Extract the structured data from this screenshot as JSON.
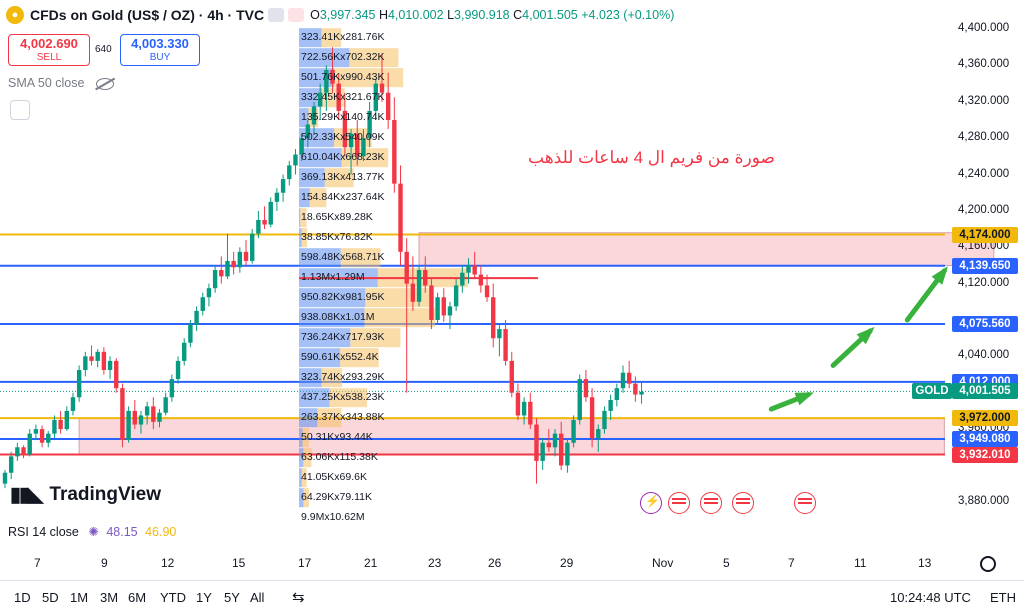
{
  "header": {
    "symbol": "CFDs on Gold (US$ / OZ) · 4h · TVC",
    "o_label": "O",
    "o_value": "3,997.345",
    "h_label": "H",
    "h_value": "4,010.002",
    "l_label": "L",
    "l_value": "3,990.918",
    "c_label": "C",
    "c_value": "4,001.505",
    "change": "+4.023 (+0.10%)"
  },
  "trade": {
    "sell_price": "4,002.690",
    "sell_label": "SELL",
    "spread": "640",
    "buy_price": "4,003.330",
    "buy_label": "BUY"
  },
  "indicator_sma": "SMA 50 close",
  "rsi": {
    "label": "RSI 14 close",
    "v1": "48.15",
    "v2": "46.90"
  },
  "annotation": "صورة من فريم ال 4 ساعات للذهب",
  "brand": "TradingView",
  "colors": {
    "up": "#089981",
    "down": "#f23645",
    "blue": "#2962ff",
    "gold": "#f0b90b",
    "zone": "#f7c6cc",
    "arrow": "#38b23c"
  },
  "chart_data": {
    "type": "candlestick",
    "y_ticks": [
      "4,400.000",
      "4,360.000",
      "4,320.000",
      "4,280.000",
      "4,240.000",
      "4,200.000",
      "4,160.000",
      "4,120.000",
      "4,040.000",
      "3,960.000",
      "3,880.000"
    ],
    "ylim": [
      3860,
      4410
    ],
    "x_ticks": [
      "7",
      "9",
      "12",
      "15",
      "17",
      "21",
      "23",
      "26",
      "29",
      "Nov",
      "5",
      "7",
      "11",
      "13"
    ],
    "levels": [
      {
        "price": 4174.0,
        "label": "4,174.000",
        "color": "#f0b90b"
      },
      {
        "price": 4139.65,
        "label": "4,139.650",
        "color": "#2962ff"
      },
      {
        "price": 4075.56,
        "label": "4,075.560",
        "color": "#2962ff"
      },
      {
        "price": 4012.0,
        "label": "4,012.000",
        "color": "#2962ff"
      },
      {
        "price": 3972.0,
        "label": "3,972.000",
        "color": "#f0b90b"
      },
      {
        "price": 3949.08,
        "label": "3,949.080",
        "color": "#2962ff"
      },
      {
        "price": 3932.01,
        "label": "3,932.010",
        "color": "#f23645"
      }
    ],
    "current": {
      "label": "GOLD",
      "price": "4,001.505",
      "value": 4001.505
    },
    "zones": [
      {
        "from_candle": 67,
        "to_candle": 160,
        "top": 4176,
        "bottom": 4140
      },
      {
        "from_candle": 12,
        "to_candle": 152,
        "top": 3972,
        "bottom": 3932
      }
    ],
    "volume_profile": [
      {
        "price": 4390,
        "label": "323.41Kx281.76K",
        "up": 323.41,
        "down": 281.76
      },
      {
        "price": 4368,
        "label": "722.56Kx702.32K",
        "up": 722.56,
        "down": 702.32
      },
      {
        "price": 4346,
        "label": "501.76Kx990.43K",
        "up": 501.76,
        "down": 990.43
      },
      {
        "price": 4324,
        "label": "332.45Kx321.67K",
        "up": 332.45,
        "down": 321.67
      },
      {
        "price": 4302,
        "label": "135.29Kx140.74K",
        "up": 135.29,
        "down": 140.74
      },
      {
        "price": 4280,
        "label": "502.33Kx540.09K",
        "up": 502.33,
        "down": 540.09
      },
      {
        "price": 4258,
        "label": "610.04Kx668.23K",
        "up": 610.04,
        "down": 668.23
      },
      {
        "price": 4236,
        "label": "369.13Kx413.77K",
        "up": 369.13,
        "down": 413.77
      },
      {
        "price": 4214,
        "label": "154.84Kx237.64K",
        "up": 154.84,
        "down": 237.64
      },
      {
        "price": 4192,
        "label": "18.65Kx89.28K",
        "up": 18.65,
        "down": 89.28
      },
      {
        "price": 4170,
        "label": "38.85Kx76.82K",
        "up": 38.85,
        "down": 76.82
      },
      {
        "price": 4148,
        "label": "598.48Kx568.71K",
        "up": 598.48,
        "down": 568.71
      },
      {
        "price": 4126,
        "label": "1.13Mx1.29M",
        "up": 1130,
        "down": 1290
      },
      {
        "price": 4104,
        "label": "950.82Kx981.95K",
        "up": 950.82,
        "down": 981.95
      },
      {
        "price": 4082,
        "label": "938.08Kx1.01M",
        "up": 938.08,
        "down": 1010
      },
      {
        "price": 4060,
        "label": "736.24Kx717.93K",
        "up": 736.24,
        "down": 717.93
      },
      {
        "price": 4038,
        "label": "590.61Kx552.4K",
        "up": 590.61,
        "down": 552.4
      },
      {
        "price": 4016,
        "label": "323.74Kx293.29K",
        "up": 323.74,
        "down": 293.29
      },
      {
        "price": 3994,
        "label": "437.25Kx538.23K",
        "up": 437.25,
        "down": 538.23
      },
      {
        "price": 3972,
        "label": "263.37Kx343.88K",
        "up": 263.37,
        "down": 343.88
      },
      {
        "price": 3950,
        "label": "50.31Kx93.44K",
        "up": 50.31,
        "down": 93.44
      },
      {
        "price": 3928,
        "label": "63.06Kx115.38K",
        "up": 63.06,
        "down": 115.38
      },
      {
        "price": 3906,
        "label": "41.05Kx69.6K",
        "up": 41.05,
        "down": 69.6
      },
      {
        "price": 3884,
        "label": "64.29Kx79.11K",
        "up": 64.29,
        "down": 79.11
      },
      {
        "price": 3862,
        "label": "9.9Mx10.62M",
        "up": 9900,
        "down": 10620
      }
    ],
    "poc_price": 4126,
    "arrows": [
      {
        "from": [
          3982,
          124
        ],
        "to": [
          3998,
          130
        ]
      },
      {
        "from": [
          4030,
          134
        ],
        "to": [
          4068,
          140
        ]
      },
      {
        "from": [
          4080,
          146
        ],
        "to": [
          4134,
          152
        ]
      }
    ],
    "candles": [
      [
        3900,
        3915,
        3895,
        3912
      ],
      [
        3912,
        3935,
        3905,
        3930
      ],
      [
        3930,
        3945,
        3925,
        3940
      ],
      [
        3940,
        3942,
        3928,
        3932
      ],
      [
        3932,
        3960,
        3930,
        3955
      ],
      [
        3955,
        3965,
        3948,
        3960
      ],
      [
        3960,
        3964,
        3940,
        3945
      ],
      [
        3945,
        3958,
        3940,
        3955
      ],
      [
        3955,
        3975,
        3950,
        3970
      ],
      [
        3970,
        3980,
        3955,
        3960
      ],
      [
        3960,
        3985,
        3958,
        3980
      ],
      [
        3980,
        4000,
        3975,
        3995
      ],
      [
        3995,
        4030,
        3990,
        4025
      ],
      [
        4025,
        4045,
        4018,
        4040
      ],
      [
        4040,
        4052,
        4030,
        4035
      ],
      [
        4035,
        4048,
        4028,
        4045
      ],
      [
        4045,
        4050,
        4020,
        4025
      ],
      [
        4025,
        4040,
        4015,
        4035
      ],
      [
        4035,
        4038,
        4000,
        4005
      ],
      [
        4005,
        4010,
        3940,
        3948
      ],
      [
        3948,
        3985,
        3945,
        3980
      ],
      [
        3980,
        3992,
        3960,
        3965
      ],
      [
        3965,
        3980,
        3955,
        3975
      ],
      [
        3975,
        3990,
        3965,
        3985
      ],
      [
        3985,
        3995,
        3960,
        3968
      ],
      [
        3968,
        3982,
        3962,
        3978
      ],
      [
        3978,
        4000,
        3975,
        3995
      ],
      [
        3995,
        4020,
        3990,
        4015
      ],
      [
        4015,
        4040,
        4010,
        4035
      ],
      [
        4035,
        4060,
        4030,
        4055
      ],
      [
        4055,
        4080,
        4050,
        4075
      ],
      [
        4075,
        4095,
        4068,
        4090
      ],
      [
        4090,
        4110,
        4085,
        4105
      ],
      [
        4105,
        4120,
        4095,
        4115
      ],
      [
        4115,
        4140,
        4110,
        4135
      ],
      [
        4135,
        4150,
        4120,
        4128
      ],
      [
        4128,
        4175,
        4125,
        4145
      ],
      [
        4145,
        4155,
        4130,
        4138
      ],
      [
        4138,
        4160,
        4132,
        4155
      ],
      [
        4155,
        4168,
        4140,
        4145
      ],
      [
        4145,
        4180,
        4142,
        4175
      ],
      [
        4175,
        4200,
        4170,
        4190
      ],
      [
        4190,
        4205,
        4180,
        4185
      ],
      [
        4185,
        4215,
        4182,
        4210
      ],
      [
        4210,
        4225,
        4200,
        4220
      ],
      [
        4220,
        4240,
        4210,
        4235
      ],
      [
        4235,
        4255,
        4228,
        4250
      ],
      [
        4250,
        4268,
        4240,
        4262
      ],
      [
        4262,
        4285,
        4255,
        4280
      ],
      [
        4280,
        4300,
        4270,
        4295
      ],
      [
        4295,
        4320,
        4285,
        4315
      ],
      [
        4315,
        4340,
        4300,
        4330
      ],
      [
        4330,
        4360,
        4310,
        4355
      ],
      [
        4355,
        4380,
        4330,
        4340
      ],
      [
        4340,
        4350,
        4300,
        4310
      ],
      [
        4310,
        4330,
        4260,
        4270
      ],
      [
        4270,
        4290,
        4240,
        4285
      ],
      [
        4285,
        4300,
        4250,
        4260
      ],
      [
        4260,
        4290,
        4255,
        4280
      ],
      [
        4280,
        4320,
        4270,
        4310
      ],
      [
        4310,
        4345,
        4300,
        4340
      ],
      [
        4340,
        4372,
        4320,
        4330
      ],
      [
        4330,
        4352,
        4290,
        4300
      ],
      [
        4300,
        4325,
        4220,
        4230
      ],
      [
        4230,
        4250,
        4140,
        4155
      ],
      [
        4155,
        4170,
        4000,
        4120
      ],
      [
        4120,
        4150,
        4090,
        4100
      ],
      [
        4100,
        4140,
        4095,
        4135
      ],
      [
        4135,
        4150,
        4110,
        4118
      ],
      [
        4118,
        4125,
        4070,
        4080
      ],
      [
        4080,
        4110,
        4075,
        4105
      ],
      [
        4105,
        4115,
        4078,
        4085
      ],
      [
        4085,
        4100,
        4070,
        4095
      ],
      [
        4095,
        4125,
        4090,
        4118
      ],
      [
        4118,
        4140,
        4110,
        4132
      ],
      [
        4132,
        4148,
        4120,
        4140
      ],
      [
        4140,
        4155,
        4125,
        4130
      ],
      [
        4130,
        4140,
        4110,
        4118
      ],
      [
        4118,
        4130,
        4100,
        4105
      ],
      [
        4105,
        4120,
        4050,
        4060
      ],
      [
        4060,
        4075,
        4040,
        4070
      ],
      [
        4070,
        4080,
        4030,
        4035
      ],
      [
        4035,
        4045,
        3995,
        4000
      ],
      [
        4000,
        4010,
        3970,
        3975
      ],
      [
        3975,
        3995,
        3965,
        3990
      ],
      [
        3990,
        4000,
        3960,
        3965
      ],
      [
        3965,
        3972,
        3900,
        3925
      ],
      [
        3925,
        3950,
        3915,
        3945
      ],
      [
        3945,
        3960,
        3935,
        3940
      ],
      [
        3940,
        3960,
        3930,
        3955
      ],
      [
        3955,
        3968,
        3915,
        3920
      ],
      [
        3920,
        3950,
        3912,
        3945
      ],
      [
        3945,
        3975,
        3940,
        3970
      ],
      [
        3970,
        4020,
        3965,
        4015
      ],
      [
        4015,
        4025,
        3990,
        3995
      ],
      [
        3995,
        4005,
        3940,
        3950
      ],
      [
        3950,
        3965,
        3935,
        3960
      ],
      [
        3960,
        3985,
        3955,
        3980
      ],
      [
        3980,
        3998,
        3970,
        3992
      ],
      [
        3992,
        4010,
        3985,
        4005
      ],
      [
        4005,
        4030,
        4000,
        4022
      ],
      [
        4022,
        4035,
        4005,
        4010
      ],
      [
        4010,
        4018,
        3990,
        3998
      ],
      [
        3998,
        4012,
        3988,
        4001
      ]
    ]
  },
  "xaxis_settings_icon": "gear-icon",
  "timeframes": [
    "1D",
    "5D",
    "1M",
    "3M",
    "6M",
    "YTD",
    "1Y",
    "5Y",
    "All"
  ],
  "footer": {
    "clock": "10:24:48 UTC",
    "currency": "ETH"
  }
}
